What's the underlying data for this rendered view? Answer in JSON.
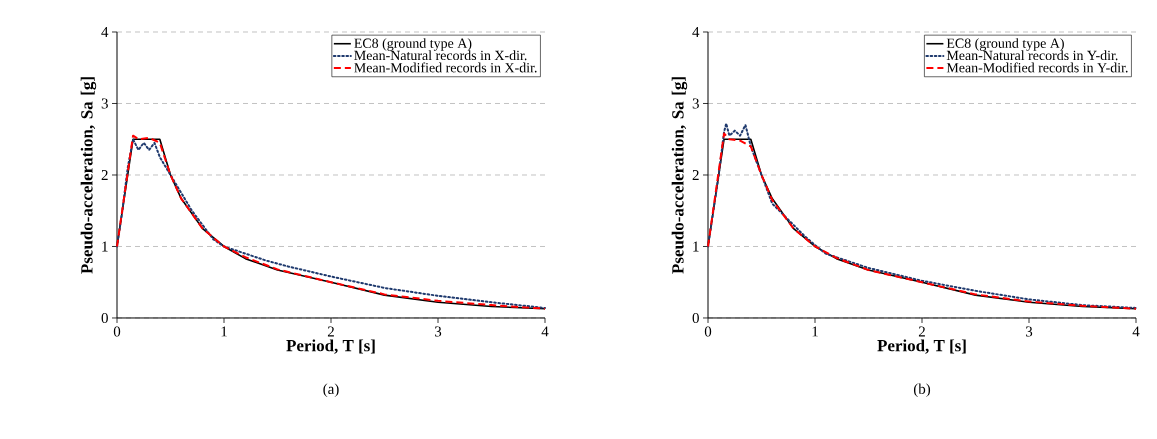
{
  "chart_data": [
    {
      "type": "line",
      "xlabel": "Period, T [s]",
      "ylabel": "Pseudo-acceleration, Sa [g]",
      "xlim": [
        0,
        4
      ],
      "ylim": [
        0,
        4
      ],
      "xticks": [
        0,
        1,
        2,
        3,
        4
      ],
      "yticks": [
        0,
        1,
        2,
        3,
        4
      ],
      "grid": "y",
      "legend": "top right",
      "annotations": [
        "(a)"
      ],
      "series": [
        {
          "name": "EC8 (ground type A)",
          "color": "#000000",
          "line_style": "solid",
          "x": [
            0,
            0.15,
            0.4,
            0.5,
            0.6,
            0.8,
            1,
            1.2,
            1.5,
            2,
            2.5,
            3,
            3.5,
            4
          ],
          "values": [
            1,
            2.5,
            2.5,
            2.0,
            1.67,
            1.25,
            1.0,
            0.83,
            0.67,
            0.5,
            0.32,
            0.22,
            0.16,
            0.13
          ]
        },
        {
          "name": "Mean-Natural records in X-dir.",
          "color": "#1f3a6e",
          "line_style": "dotted",
          "x": [
            0,
            0.05,
            0.1,
            0.15,
            0.2,
            0.25,
            0.3,
            0.35,
            0.4,
            0.5,
            0.6,
            0.7,
            0.8,
            0.9,
            1.0,
            1.1,
            1.2,
            1.4,
            1.6,
            1.8,
            2,
            2.5,
            3,
            3.5,
            4
          ],
          "values": [
            1.0,
            1.5,
            2.1,
            2.5,
            2.35,
            2.45,
            2.35,
            2.45,
            2.25,
            2.0,
            1.75,
            1.5,
            1.3,
            1.1,
            1.0,
            0.95,
            0.9,
            0.8,
            0.72,
            0.65,
            0.58,
            0.42,
            0.31,
            0.22,
            0.14
          ]
        },
        {
          "name": "Mean-Modified records in X-dir.",
          "color": "#ff0000",
          "line_style": "dashed",
          "x": [
            0,
            0.15,
            0.2,
            0.3,
            0.4,
            0.5,
            0.6,
            0.8,
            1,
            1.2,
            1.5,
            2,
            2.5,
            3,
            3.5,
            4
          ],
          "values": [
            1,
            2.55,
            2.5,
            2.52,
            2.45,
            2.0,
            1.67,
            1.25,
            1.0,
            0.85,
            0.68,
            0.5,
            0.33,
            0.24,
            0.18,
            0.13
          ]
        }
      ]
    },
    {
      "type": "line",
      "xlabel": "Period, T [s]",
      "ylabel": "Pseudo-acceleration, Sa [g]",
      "xlim": [
        0,
        4
      ],
      "ylim": [
        0,
        4
      ],
      "xticks": [
        0,
        1,
        2,
        3,
        4
      ],
      "yticks": [
        0,
        1,
        2,
        3,
        4
      ],
      "grid": "y",
      "legend": "top right",
      "annotations": [
        "(b)"
      ],
      "series": [
        {
          "name": "EC8 (ground type A)",
          "color": "#000000",
          "line_style": "solid",
          "x": [
            0,
            0.15,
            0.4,
            0.5,
            0.6,
            0.8,
            1,
            1.2,
            1.5,
            2,
            2.5,
            3,
            3.5,
            4
          ],
          "values": [
            1,
            2.5,
            2.5,
            2.0,
            1.67,
            1.25,
            1.0,
            0.83,
            0.67,
            0.5,
            0.32,
            0.22,
            0.16,
            0.13
          ]
        },
        {
          "name": "Mean-Natural records in Y-dir.",
          "color": "#1f3a6e",
          "line_style": "dotted",
          "x": [
            0,
            0.05,
            0.1,
            0.15,
            0.17,
            0.2,
            0.25,
            0.3,
            0.35,
            0.4,
            0.5,
            0.6,
            0.7,
            0.8,
            0.9,
            1.0,
            1.1,
            1.2,
            1.5,
            2,
            2.5,
            3,
            3.5,
            4
          ],
          "values": [
            1,
            1.5,
            2.0,
            2.6,
            2.72,
            2.55,
            2.62,
            2.55,
            2.7,
            2.4,
            2.0,
            1.6,
            1.45,
            1.3,
            1.15,
            1.02,
            0.9,
            0.85,
            0.7,
            0.52,
            0.38,
            0.26,
            0.18,
            0.14
          ]
        },
        {
          "name": "Mean-Modified records in Y-dir.",
          "color": "#ff0000",
          "line_style": "dashed",
          "x": [
            0,
            0.15,
            0.2,
            0.3,
            0.4,
            0.5,
            0.6,
            0.8,
            1,
            1.2,
            1.5,
            2,
            2.5,
            3,
            3.5,
            4
          ],
          "values": [
            1,
            2.58,
            2.5,
            2.48,
            2.4,
            2.0,
            1.65,
            1.25,
            1.0,
            0.84,
            0.67,
            0.5,
            0.33,
            0.23,
            0.17,
            0.13
          ]
        }
      ]
    }
  ]
}
